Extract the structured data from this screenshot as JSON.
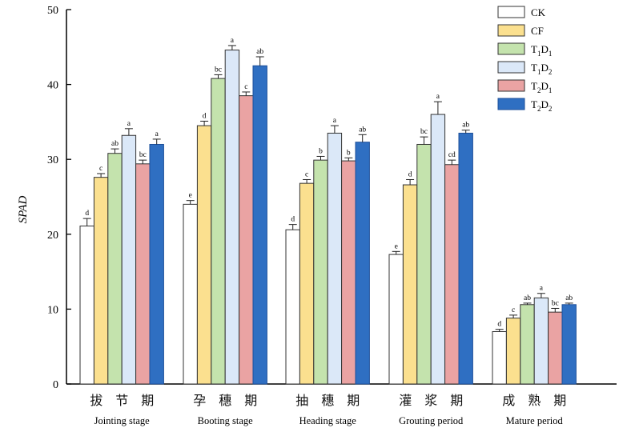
{
  "chart_data": {
    "type": "bar",
    "title": "",
    "xlabel": "",
    "ylabel": "SPAD",
    "ylim": [
      0,
      50
    ],
    "yticks": [
      0,
      10,
      20,
      30,
      40,
      50
    ],
    "categories": [
      {
        "cn": "拔　节　期",
        "en": "Jointing stage"
      },
      {
        "cn": "孕　穗　期",
        "en": "Booting stage"
      },
      {
        "cn": "抽　穗　期",
        "en": "Heading stage"
      },
      {
        "cn": "灌　浆　期",
        "en": "Grouting period"
      },
      {
        "cn": "成　熟　期",
        "en": "Mature period"
      }
    ],
    "legend_position": "top-right",
    "series": [
      {
        "name": "CK",
        "base": "CK",
        "sub": [],
        "color": "#ffffff",
        "values": [
          21.1,
          24.0,
          20.6,
          17.3,
          7.0
        ],
        "errors": [
          1.0,
          0.5,
          0.7,
          0.4,
          0.3
        ],
        "letters": [
          "d",
          "e",
          "d",
          "e",
          "d"
        ]
      },
      {
        "name": "CF",
        "base": "CF",
        "sub": [],
        "color": "#fbe08f",
        "values": [
          27.6,
          34.5,
          26.8,
          26.6,
          8.8
        ],
        "errors": [
          0.5,
          0.6,
          0.5,
          0.7,
          0.4
        ],
        "letters": [
          "c",
          "d",
          "c",
          "d",
          "c"
        ]
      },
      {
        "name": "T1D1",
        "base": "T",
        "sub": [
          "1",
          "D",
          "1"
        ],
        "color": "#c4e3ad",
        "values": [
          30.8,
          40.8,
          29.9,
          32.0,
          10.6
        ],
        "errors": [
          0.6,
          0.5,
          0.5,
          1.0,
          0.2
        ],
        "letters": [
          "ab",
          "bc",
          "b",
          "bc",
          "ab"
        ]
      },
      {
        "name": "T1D2",
        "base": "T",
        "sub": [
          "1",
          "D",
          "2"
        ],
        "color": "#dbe8f8",
        "values": [
          33.2,
          44.6,
          33.5,
          36.0,
          11.5
        ],
        "errors": [
          0.9,
          0.6,
          1.0,
          1.7,
          0.6
        ],
        "letters": [
          "a",
          "a",
          "a",
          "a",
          "a"
        ]
      },
      {
        "name": "T2D1",
        "base": "T",
        "sub": [
          "2",
          "D",
          "1"
        ],
        "color": "#eaa3a3",
        "values": [
          29.4,
          38.5,
          29.8,
          29.3,
          9.6
        ],
        "errors": [
          0.5,
          0.5,
          0.4,
          0.6,
          0.5
        ],
        "letters": [
          "bc",
          "c",
          "b",
          "cd",
          "bc"
        ]
      },
      {
        "name": "T2D2",
        "base": "T",
        "sub": [
          "2",
          "D",
          "2"
        ],
        "color": "#2f6fc2",
        "values": [
          32.0,
          42.5,
          32.3,
          33.5,
          10.6
        ],
        "errors": [
          0.7,
          1.2,
          1.0,
          0.4,
          0.2
        ],
        "letters": [
          "a",
          "ab",
          "ab",
          "ab",
          "ab"
        ]
      }
    ]
  }
}
